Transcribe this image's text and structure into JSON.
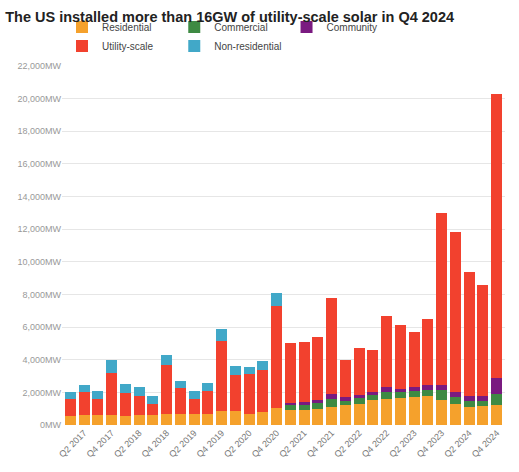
{
  "chart_data": {
    "type": "bar",
    "title": "The US installed more than 16GW of utility-scale solar in Q4 2024",
    "stacked": true,
    "grid": true,
    "legend": "top-left",
    "categories": [
      null,
      "Q2 2017",
      null,
      "Q4 2017",
      null,
      "Q2 2018",
      null,
      "Q4 2018",
      null,
      "Q2 2019",
      null,
      "Q4 2019",
      null,
      "Q2 2020",
      null,
      "Q4 2020",
      null,
      "Q2 2021",
      null,
      "Q4 2021",
      null,
      "Q2 2022",
      null,
      "Q4 2022",
      null,
      "Q2 2023",
      null,
      "Q4 2023",
      null,
      "Q2 2024",
      null,
      "Q4 2024"
    ],
    "series": [
      {
        "name": "Residential",
        "color": "#f5a12c",
        "values": [
          550,
          600,
          600,
          600,
          550,
          600,
          600,
          650,
          650,
          650,
          700,
          850,
          850,
          650,
          800,
          1050,
          900,
          950,
          1000,
          1100,
          1200,
          1300,
          1550,
          1600,
          1650,
          1700,
          1750,
          1550,
          1300,
          1100,
          1150,
          1200
        ]
      },
      {
        "name": "Commercial",
        "color": "#3e8a43",
        "values": [
          null,
          null,
          null,
          null,
          null,
          null,
          null,
          null,
          null,
          null,
          null,
          null,
          null,
          null,
          null,
          null,
          300,
          300,
          350,
          500,
          300,
          350,
          300,
          400,
          350,
          400,
          400,
          600,
          400,
          400,
          300,
          700
        ]
      },
      {
        "name": "Community",
        "color": "#7a1a80",
        "values": [
          null,
          null,
          null,
          null,
          null,
          null,
          null,
          null,
          null,
          null,
          null,
          null,
          null,
          null,
          null,
          null,
          150,
          150,
          200,
          300,
          200,
          200,
          200,
          300,
          200,
          200,
          300,
          300,
          300,
          250,
          300,
          950
        ]
      },
      {
        "name": "Utility-scale",
        "color": "#f2412e",
        "values": [
          1050,
          1400,
          1000,
          2600,
          1400,
          1200,
          700,
          3000,
          1600,
          950,
          1400,
          4300,
          2200,
          2450,
          2600,
          6250,
          3650,
          3700,
          3850,
          5900,
          2300,
          2850,
          2550,
          4400,
          3900,
          3400,
          4050,
          10550,
          9800,
          7650,
          6850,
          17450
        ]
      },
      {
        "name": "Non-residential",
        "color": "#41a8c8",
        "values": [
          450,
          450,
          500,
          800,
          550,
          500,
          500,
          650,
          450,
          500,
          500,
          750,
          550,
          450,
          500,
          800,
          null,
          null,
          null,
          null,
          null,
          null,
          null,
          null,
          null,
          null,
          null,
          null,
          null,
          null,
          null,
          null
        ]
      }
    ],
    "ylim": [
      0,
      22000
    ],
    "yticks": [
      {
        "value": 0,
        "label": "0MW"
      },
      {
        "value": 2000,
        "label": "2,000MW"
      },
      {
        "value": 4000,
        "label": "4,000MW"
      },
      {
        "value": 6000,
        "label": "6,000MW"
      },
      {
        "value": 8000,
        "label": "8,000MW"
      },
      {
        "value": 10000,
        "label": "10,000MW"
      },
      {
        "value": 12000,
        "label": "12,000MW"
      },
      {
        "value": 14000,
        "label": "14,000MW"
      },
      {
        "value": 16000,
        "label": "16,000MW"
      },
      {
        "value": 18000,
        "label": "18,000MW"
      },
      {
        "value": 20000,
        "label": "20,000MW"
      },
      {
        "value": 22000,
        "label": "22,000MW"
      }
    ]
  }
}
